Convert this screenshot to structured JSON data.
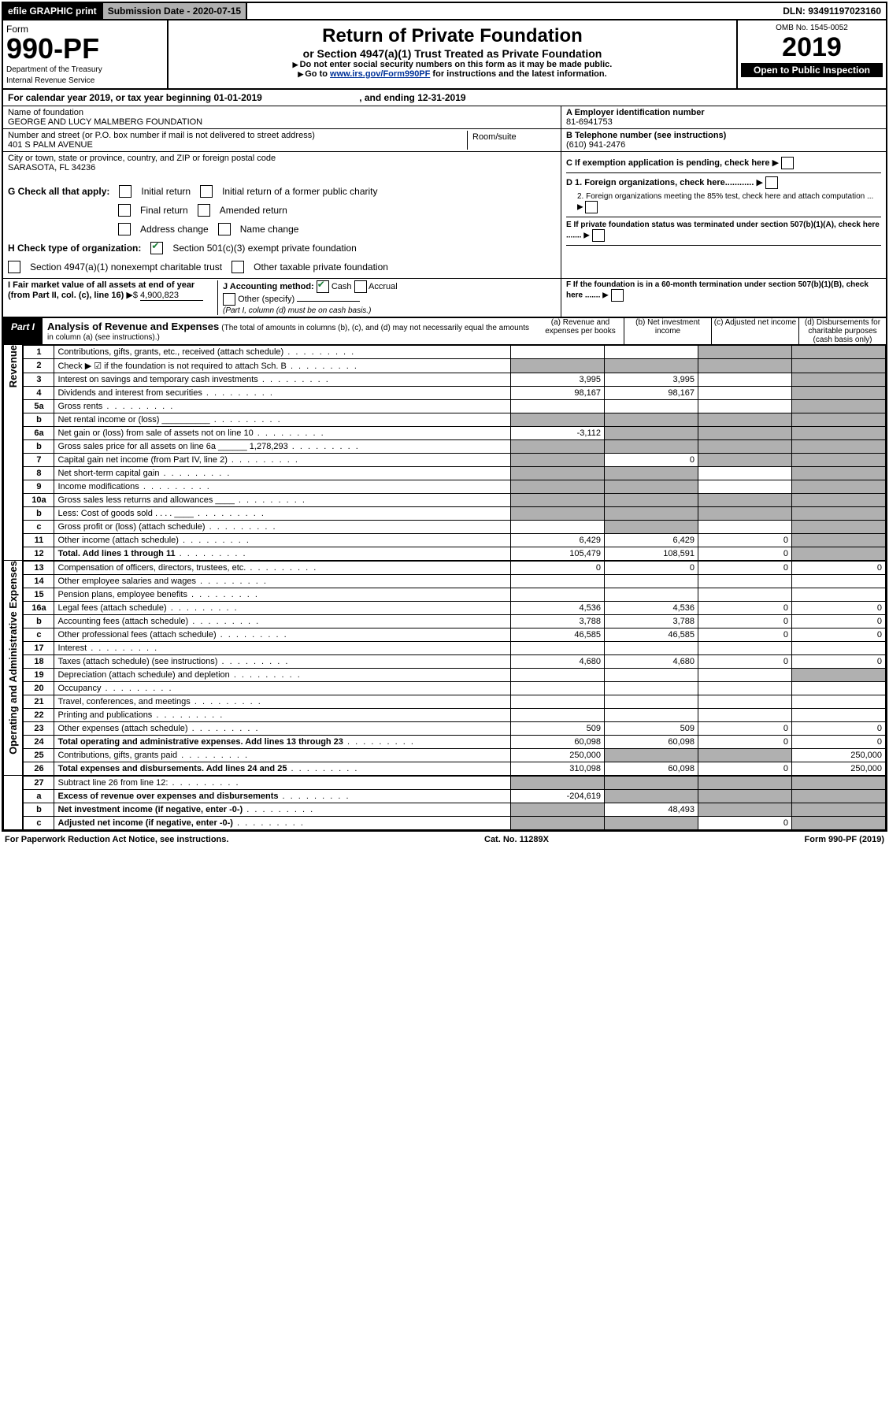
{
  "topbar": {
    "efile": "efile GRAPHIC print",
    "subm_label": "Submission Date - ",
    "subm_date": "2020-07-15",
    "dln_label": "DLN: ",
    "dln": "93491197023160"
  },
  "header": {
    "form": "Form",
    "form_no": "990-PF",
    "dept": "Department of the Treasury",
    "irs": "Internal Revenue Service",
    "title": "Return of Private Foundation",
    "subtitle": "or Section 4947(a)(1) Trust Treated as Private Foundation",
    "note1": "Do not enter social security numbers on this form as it may be made public.",
    "note2_a": "Go to ",
    "note2_link": "www.irs.gov/Form990PF",
    "note2_b": " for instructions and the latest information.",
    "omb": "OMB No. 1545-0052",
    "year": "2019",
    "open": "Open to Public Inspection"
  },
  "caly": {
    "text_a": "For calendar year 2019, or tax year beginning ",
    "begin": "01-01-2019",
    "text_b": ", and ending ",
    "end": "12-31-2019"
  },
  "ident": {
    "name_lbl": "Name of foundation",
    "name": "GEORGE AND LUCY MALMBERG FOUNDATION",
    "addr_lbl": "Number and street (or P.O. box number if mail is not delivered to street address)",
    "room_lbl": "Room/suite",
    "addr": "401 S PALM AVENUE",
    "city_lbl": "City or town, state or province, country, and ZIP or foreign postal code",
    "city": "SARASOTA, FL  34236",
    "A_lbl": "A Employer identification number",
    "A": "81-6941753",
    "B_lbl": "B Telephone number (see instructions)",
    "B": "(610) 941-2476",
    "C_lbl": "C If exemption application is pending, check here",
    "D1": "D 1. Foreign organizations, check here............",
    "D2": "2. Foreign organizations meeting the 85% test, check here and attach computation ...",
    "E": "E  If private foundation status was terminated under section 507(b)(1)(A), check here .......",
    "F": "F  If the foundation is in a 60-month termination under section 507(b)(1)(B), check here ......."
  },
  "G": {
    "lbl": "G Check all that apply:",
    "initial": "Initial return",
    "initial_former": "Initial return of a former public charity",
    "final": "Final return",
    "amended": "Amended return",
    "addr_chg": "Address change",
    "name_chg": "Name change"
  },
  "H": {
    "lbl": "H Check type of organization:",
    "s501": "Section 501(c)(3) exempt private foundation",
    "s4947": "Section 4947(a)(1) nonexempt charitable trust",
    "other": "Other taxable private foundation"
  },
  "I": {
    "lbl": "I Fair market value of all assets at end of year (from Part II, col. (c), line 16) ",
    "val_lbl": "▶$ ",
    "val": "4,900,823"
  },
  "J": {
    "lbl": "J Accounting method:",
    "cash": "Cash",
    "accrual": "Accrual",
    "other": "Other (specify)",
    "note": "(Part I, column (d) must be on cash basis.)"
  },
  "part1": {
    "tab": "Part I",
    "title": "Analysis of Revenue and Expenses",
    "title_note": "(The total of amounts in columns (b), (c), and (d) may not necessarily equal the amounts in column (a) (see instructions).)",
    "cols": {
      "a": "(a)  Revenue and expenses per books",
      "b": "(b)  Net investment income",
      "c": "(c)  Adjusted net income",
      "d": "(d)  Disbursements for charitable purposes (cash basis only)"
    },
    "side_rev": "Revenue",
    "side_exp": "Operating and Administrative Expenses"
  },
  "rows": [
    {
      "n": "1",
      "d": "Contributions, gifts, grants, etc., received (attach schedule)",
      "a": "",
      "b": "",
      "c": "g",
      "dd": "g"
    },
    {
      "n": "2",
      "d": "Check ▶ ☑ if the foundation is not required to attach Sch. B",
      "a": "g",
      "b": "g",
      "c": "g",
      "dd": "g"
    },
    {
      "n": "3",
      "d": "Interest on savings and temporary cash investments",
      "a": "3,995",
      "b": "3,995",
      "c": "",
      "dd": "g"
    },
    {
      "n": "4",
      "d": "Dividends and interest from securities",
      "a": "98,167",
      "b": "98,167",
      "c": "",
      "dd": "g"
    },
    {
      "n": "5a",
      "d": "Gross rents",
      "a": "",
      "b": "",
      "c": "",
      "dd": "g"
    },
    {
      "n": "b",
      "d": "Net rental income or (loss)  __________",
      "a": "g",
      "b": "g",
      "c": "g",
      "dd": "g"
    },
    {
      "n": "6a",
      "d": "Net gain or (loss) from sale of assets not on line 10",
      "a": "-3,112",
      "b": "g",
      "c": "g",
      "dd": "g"
    },
    {
      "n": "b",
      "d": "Gross sales price for all assets on line 6a ______ 1,278,293",
      "a": "g",
      "b": "g",
      "c": "g",
      "dd": "g"
    },
    {
      "n": "7",
      "d": "Capital gain net income (from Part IV, line 2)",
      "a": "g",
      "b": "0",
      "c": "g",
      "dd": "g"
    },
    {
      "n": "8",
      "d": "Net short-term capital gain",
      "a": "g",
      "b": "g",
      "c": "",
      "dd": "g"
    },
    {
      "n": "9",
      "d": "Income modifications",
      "a": "g",
      "b": "g",
      "c": "",
      "dd": "g"
    },
    {
      "n": "10a",
      "d": "Gross sales less returns and allowances  ____",
      "a": "g",
      "b": "g",
      "c": "g",
      "dd": "g"
    },
    {
      "n": "b",
      "d": "Less: Cost of goods sold     . . . .  ____",
      "a": "g",
      "b": "g",
      "c": "g",
      "dd": "g"
    },
    {
      "n": "c",
      "d": "Gross profit or (loss) (attach schedule)",
      "a": "",
      "b": "g",
      "c": "",
      "dd": "g"
    },
    {
      "n": "11",
      "d": "Other income (attach schedule)",
      "a": "6,429",
      "b": "6,429",
      "c": "0",
      "dd": "g"
    },
    {
      "n": "12",
      "d": "Total. Add lines 1 through 11",
      "a": "105,479",
      "b": "108,591",
      "c": "0",
      "dd": "g",
      "bold": true
    }
  ],
  "rows2": [
    {
      "n": "13",
      "d": "Compensation of officers, directors, trustees, etc.",
      "a": "0",
      "b": "0",
      "c": "0",
      "dd": "0"
    },
    {
      "n": "14",
      "d": "Other employee salaries and wages",
      "a": "",
      "b": "",
      "c": "",
      "dd": ""
    },
    {
      "n": "15",
      "d": "Pension plans, employee benefits",
      "a": "",
      "b": "",
      "c": "",
      "dd": ""
    },
    {
      "n": "16a",
      "d": "Legal fees (attach schedule)",
      "a": "4,536",
      "b": "4,536",
      "c": "0",
      "dd": "0"
    },
    {
      "n": "b",
      "d": "Accounting fees (attach schedule)",
      "a": "3,788",
      "b": "3,788",
      "c": "0",
      "dd": "0"
    },
    {
      "n": "c",
      "d": "Other professional fees (attach schedule)",
      "a": "46,585",
      "b": "46,585",
      "c": "0",
      "dd": "0"
    },
    {
      "n": "17",
      "d": "Interest",
      "a": "",
      "b": "",
      "c": "",
      "dd": ""
    },
    {
      "n": "18",
      "d": "Taxes (attach schedule) (see instructions)",
      "a": "4,680",
      "b": "4,680",
      "c": "0",
      "dd": "0"
    },
    {
      "n": "19",
      "d": "Depreciation (attach schedule) and depletion",
      "a": "",
      "b": "",
      "c": "",
      "dd": "g"
    },
    {
      "n": "20",
      "d": "Occupancy",
      "a": "",
      "b": "",
      "c": "",
      "dd": ""
    },
    {
      "n": "21",
      "d": "Travel, conferences, and meetings",
      "a": "",
      "b": "",
      "c": "",
      "dd": ""
    },
    {
      "n": "22",
      "d": "Printing and publications",
      "a": "",
      "b": "",
      "c": "",
      "dd": ""
    },
    {
      "n": "23",
      "d": "Other expenses (attach schedule)",
      "a": "509",
      "b": "509",
      "c": "0",
      "dd": "0"
    },
    {
      "n": "24",
      "d": "Total operating and administrative expenses. Add lines 13 through 23",
      "a": "60,098",
      "b": "60,098",
      "c": "0",
      "dd": "0",
      "bold": true
    },
    {
      "n": "25",
      "d": "Contributions, gifts, grants paid",
      "a": "250,000",
      "b": "g",
      "c": "g",
      "dd": "250,000"
    },
    {
      "n": "26",
      "d": "Total expenses and disbursements. Add lines 24 and 25",
      "a": "310,098",
      "b": "60,098",
      "c": "0",
      "dd": "250,000",
      "bold": true
    }
  ],
  "rows3": [
    {
      "n": "27",
      "d": "Subtract line 26 from line 12:",
      "a": "g",
      "b": "g",
      "c": "g",
      "dd": "g"
    },
    {
      "n": "a",
      "d": "Excess of revenue over expenses and disbursements",
      "a": "-204,619",
      "b": "g",
      "c": "g",
      "dd": "g",
      "bold": true
    },
    {
      "n": "b",
      "d": "Net investment income (if negative, enter -0-)",
      "a": "g",
      "b": "48,493",
      "c": "g",
      "dd": "g",
      "bold": true
    },
    {
      "n": "c",
      "d": "Adjusted net income (if negative, enter -0-)",
      "a": "g",
      "b": "g",
      "c": "0",
      "dd": "g",
      "bold": true
    }
  ],
  "footer": {
    "pra": "For Paperwork Reduction Act Notice, see instructions.",
    "cat": "Cat. No. 11289X",
    "form": "Form 990-PF (2019)"
  },
  "colors": {
    "black": "#000000",
    "gray": "#b0b0b0",
    "link": "#003399",
    "check": "#1a7f37"
  }
}
